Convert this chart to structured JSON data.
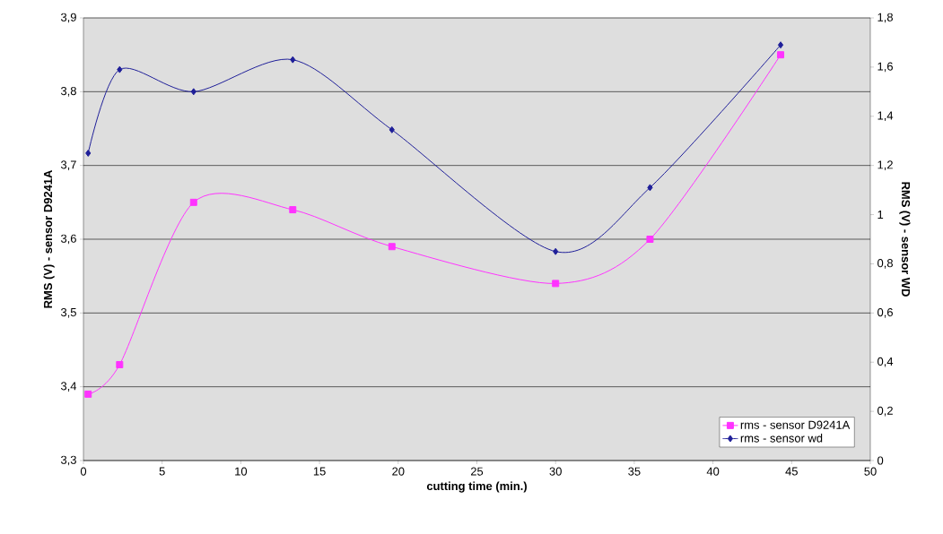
{
  "chart_data": {
    "type": "line",
    "xlabel": "cutting time (min.)",
    "ylabel": "RMS (V) - sensor D9241A",
    "y2label": "RMS (V) - sensor WD",
    "xlim": [
      0,
      50
    ],
    "xticks": [
      0,
      5,
      10,
      15,
      20,
      25,
      30,
      35,
      40,
      45,
      50
    ],
    "ylim": [
      3.3,
      3.9
    ],
    "yticks": [
      {
        "value": 3.3,
        "label": "3,3"
      },
      {
        "value": 3.4,
        "label": "3,4"
      },
      {
        "value": 3.5,
        "label": "3,5"
      },
      {
        "value": 3.6,
        "label": "3,6"
      },
      {
        "value": 3.7,
        "label": "3,7"
      },
      {
        "value": 3.8,
        "label": "3,8"
      },
      {
        "value": 3.9,
        "label": "3,9"
      }
    ],
    "y2lim": [
      0,
      1.8
    ],
    "y2ticks": [
      0,
      {
        "value": 0.2,
        "label": "0,2"
      },
      {
        "value": 0.4,
        "label": "0,4"
      },
      {
        "value": 0.6,
        "label": "0,6"
      },
      {
        "value": 0.8,
        "label": "0,8"
      },
      1,
      {
        "value": 1.2,
        "label": "1,2"
      },
      {
        "value": 1.4,
        "label": "1,4"
      },
      {
        "value": 1.6,
        "label": "1,6"
      },
      {
        "value": 1.8,
        "label": "1,8"
      }
    ],
    "grid": "y",
    "legend": "bottom right",
    "series": [
      {
        "name": "rms - sensor D9241A",
        "color": "#ff33ff",
        "marker": "square",
        "x": [
          0.3,
          2.3,
          7,
          13.3,
          19.6,
          30,
          36,
          44.3
        ],
        "values": [
          3.39,
          3.43,
          3.65,
          3.64,
          3.59,
          3.54,
          3.6,
          3.85
        ]
      },
      {
        "name": "rms - sensor wd",
        "color": "#1f1f99",
        "marker": "diamond",
        "axis": "y2",
        "x": [
          0.3,
          2.3,
          7,
          13.3,
          19.6,
          30,
          36,
          44.3
        ],
        "values": [
          1.25,
          1.59,
          1.5,
          1.63,
          1.345,
          0.85,
          1.11,
          1.69
        ]
      }
    ]
  }
}
